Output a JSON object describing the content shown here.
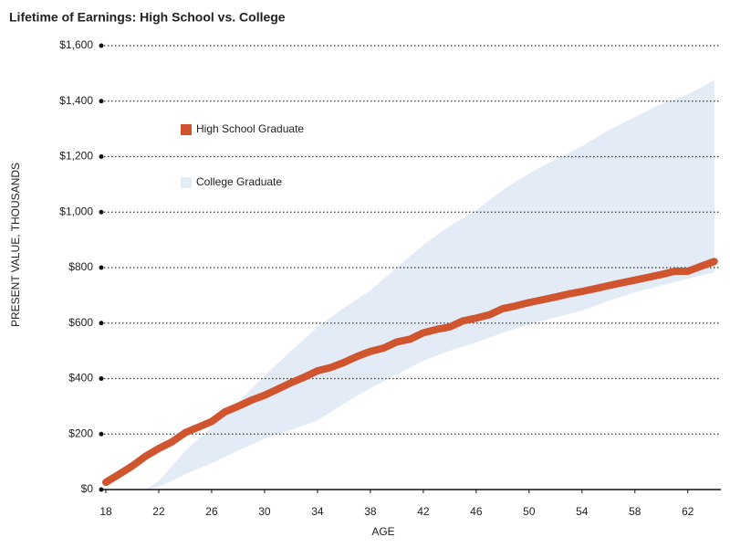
{
  "chart_data": {
    "type": "line",
    "title": "Lifetime of Earnings: High School vs. College",
    "xlabel": "AGE",
    "ylabel": "PRESENT VALUE, THOUSANDS",
    "xlim": [
      18,
      64.5
    ],
    "xticks": [
      18,
      22,
      26,
      30,
      34,
      38,
      42,
      46,
      50,
      54,
      58,
      62
    ],
    "ylim": [
      0,
      1600
    ],
    "yticks": [
      {
        "value": 0,
        "label": "$0"
      },
      {
        "value": 200,
        "label": "$200"
      },
      {
        "value": 400,
        "label": "$400"
      },
      {
        "value": 600,
        "label": "$600"
      },
      {
        "value": 800,
        "label": "$800"
      },
      {
        "value": 1000,
        "label": "$1,000"
      },
      {
        "value": 1200,
        "label": "$1,200"
      },
      {
        "value": 1400,
        "label": "$1,400"
      },
      {
        "value": 1600,
        "label": "$1,600"
      }
    ],
    "grid": true,
    "series": [
      {
        "name": "High School Graduate",
        "color": "#d0552f",
        "x": [
          18,
          19,
          20,
          21,
          22,
          23,
          24,
          25,
          26,
          27,
          28,
          29,
          30,
          31,
          32,
          33,
          34,
          35,
          36,
          37,
          38,
          39,
          40,
          41,
          42,
          43,
          44,
          45,
          46,
          47,
          48,
          49,
          50,
          51,
          52,
          53,
          54,
          55,
          56,
          57,
          58,
          59,
          60,
          61,
          62,
          63,
          64
        ],
        "values": [
          26,
          55,
          85,
          120,
          148,
          172,
          205,
          225,
          245,
          280,
          300,
          322,
          340,
          362,
          385,
          405,
          428,
          440,
          458,
          480,
          498,
          510,
          532,
          542,
          565,
          577,
          586,
          608,
          618,
          630,
          652,
          662,
          674,
          684,
          694,
          705,
          714,
          724,
          735,
          745,
          755,
          765,
          775,
          787,
          787,
          805,
          822
        ]
      },
      {
        "name": "College Graduate",
        "color": "#e3ebf7",
        "x": [
          21,
          22,
          24,
          26,
          28,
          30,
          32,
          34,
          36,
          38,
          40,
          42,
          44,
          46,
          48,
          50,
          52,
          54,
          56,
          58,
          60,
          62,
          64
        ],
        "low": [
          0,
          10,
          55,
          95,
          140,
          184,
          215,
          250,
          310,
          365,
          415,
          464,
          500,
          530,
          565,
          596,
          620,
          645,
          680,
          711,
          735,
          760,
          783
        ],
        "high": [
          0,
          30,
          140,
          225,
          315,
          410,
          500,
          586,
          655,
          718,
          800,
          882,
          950,
          1007,
          1080,
          1139,
          1190,
          1238,
          1295,
          1343,
          1390,
          1425,
          1475
        ]
      }
    ]
  }
}
